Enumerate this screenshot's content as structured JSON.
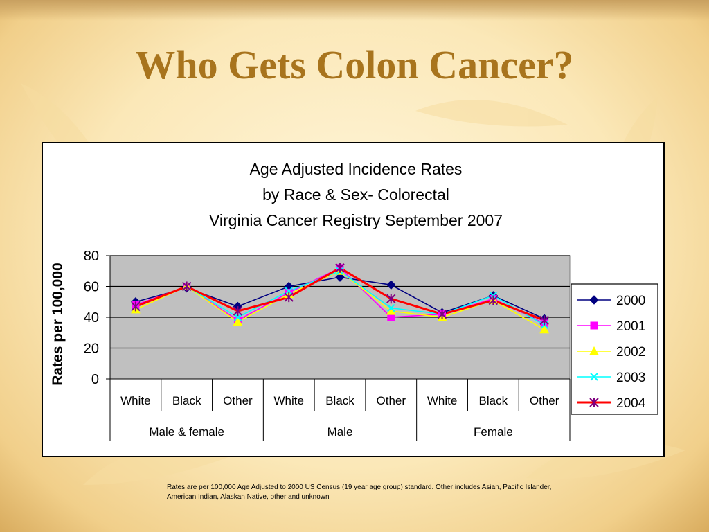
{
  "slide": {
    "title": "Who Gets Colon Cancer?",
    "footnote": "Rates are per 100,000 Age Adjusted to 2000 US Census (19 year age group) standard.  Other includes Asian, Pacific Islander, American Indian, Alaskan Native, other and unknown"
  },
  "chart_data": {
    "type": "line",
    "title_lines": [
      "Age Adjusted Incidence Rates",
      "by Race & Sex- Colorectal",
      "Virginia Cancer Registry September 2007"
    ],
    "ylabel": "Rates per 100,000",
    "ylim": [
      0,
      80
    ],
    "yticks": [
      0,
      20,
      40,
      60,
      80
    ],
    "grid": true,
    "legend_position": "right",
    "categories": [
      "White",
      "Black",
      "Other",
      "White",
      "Black",
      "Other",
      "White",
      "Black",
      "Other"
    ],
    "groups": [
      {
        "label": "Male & female",
        "span": 3
      },
      {
        "label": "Male",
        "span": 3
      },
      {
        "label": "Female",
        "span": 3
      }
    ],
    "series": [
      {
        "name": "2000",
        "color": "#000080",
        "marker": "diamond",
        "values": [
          50,
          59,
          47,
          60,
          66,
          61,
          43,
          54,
          39
        ]
      },
      {
        "name": "2001",
        "color": "#ff00ff",
        "marker": "square",
        "values": [
          48,
          60,
          38,
          56,
          72,
          40,
          42,
          52,
          36
        ]
      },
      {
        "name": "2002",
        "color": "#ffff00",
        "marker": "triangle",
        "values": [
          45,
          60,
          37,
          55,
          70,
          44,
          40,
          51,
          32
        ]
      },
      {
        "name": "2003",
        "color": "#00ffff",
        "marker": "x",
        "values": [
          47,
          60,
          40,
          57,
          70,
          46,
          42,
          54,
          35
        ]
      },
      {
        "name": "2004",
        "color": "#ff0000",
        "marker": "star",
        "values": [
          47,
          60,
          44,
          53,
          72,
          52,
          42,
          51,
          38
        ]
      }
    ]
  }
}
